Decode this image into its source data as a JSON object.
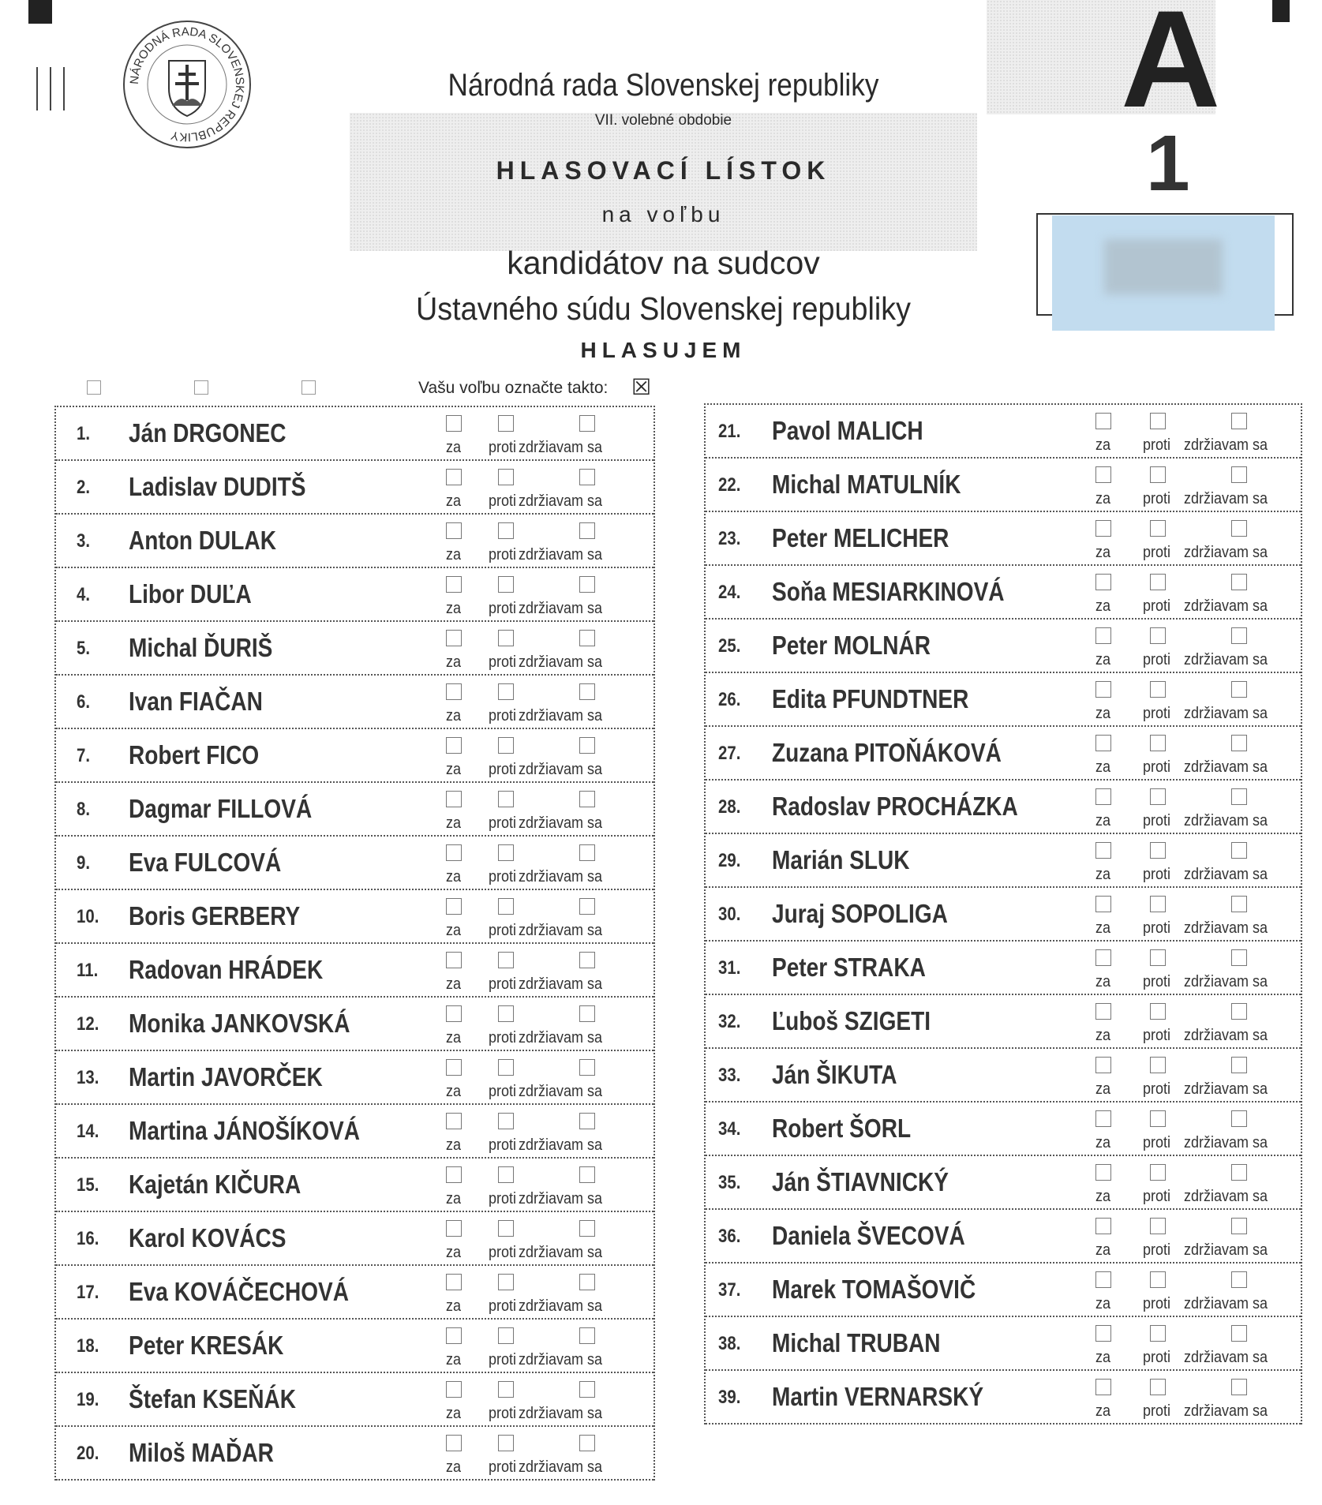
{
  "seal": {
    "text": "NÁRODNÁ RADA SLOVENSKEJ REPUBLIKY"
  },
  "header": {
    "institution": "Národná rada Slovenskej republiky",
    "term": "VII. volebné obdobie",
    "title": "HLASOVACÍ LÍSTOK",
    "subtitle": "na voľbu",
    "line1": "kandidátov na sudcov",
    "line2": "Ústavného súdu Slovenskej republiky",
    "vote": "HLASUJEM"
  },
  "corner": {
    "letter": "A",
    "number": "1"
  },
  "instruction": {
    "text": "Vašu voľbu označte takto:",
    "example_mark": "☒"
  },
  "options": [
    "za",
    "proti",
    "zdržiavam sa"
  ],
  "candidates": [
    "Ján DRGONEC",
    "Ladislav DUDITŠ",
    "Anton DULAK",
    "Libor DUĽA",
    "Michal ĎURIŠ",
    "Ivan FIAČAN",
    "Robert FICO",
    "Dagmar FILLOVÁ",
    "Eva FULCOVÁ",
    "Boris GERBERY",
    "Radovan HRÁDEK",
    "Monika JANKOVSKÁ",
    "Martin JAVORČEK",
    "Martina JÁNOŠÍKOVÁ",
    "Kajetán KIČURA",
    "Karol KOVÁCS",
    "Eva KOVÁČECHOVÁ",
    "Peter KRESÁK",
    "Štefan KSEŇÁK",
    "Miloš MAĎAR",
    "Pavol MALICH",
    "Michal MATULNÍK",
    "Peter MELICHER",
    "Soňa MESIARKINOVÁ",
    "Peter MOLNÁR",
    "Edita PFUNDTNER",
    "Zuzana PITOŇÁKOVÁ",
    "Radoslav PROCHÁZKA",
    "Marián SLUK",
    "Juraj SOPOLIGA",
    "Peter STRAKA",
    "Ľuboš SZIGETI",
    "Ján ŠIKUTA",
    "Robert ŠORL",
    "Ján ŠTIAVNICKÝ",
    "Daniela ŠVECOVÁ",
    "Marek TOMAŠOVIČ",
    "Michal TRUBAN",
    "Martin VERNARSKÝ"
  ],
  "colors": {
    "redaction": "#c2dcef"
  }
}
